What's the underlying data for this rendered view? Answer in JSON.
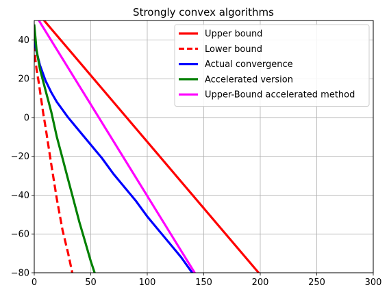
{
  "chart_data": {
    "type": "line",
    "title": "Strongly convex algorithms",
    "xlabel": "",
    "ylabel": "",
    "xlim": [
      0,
      300
    ],
    "ylim": [
      -80,
      50
    ],
    "xticks": [
      0,
      50,
      100,
      150,
      200,
      250,
      300
    ],
    "yticks": [
      -80,
      -60,
      -40,
      -20,
      0,
      20,
      40
    ],
    "grid": true,
    "legend_position": "top-right",
    "series": [
      {
        "name": "Upper bound",
        "color": "#ff0000",
        "style": "solid",
        "x": [
          0,
          200
        ],
        "y": [
          56,
          -81
        ]
      },
      {
        "name": "Lower bound",
        "color": "#ff0000",
        "style": "dashed",
        "x": [
          0,
          1,
          2,
          4,
          6,
          8,
          10,
          15,
          20,
          25,
          30,
          34
        ],
        "y": [
          38,
          30,
          25,
          18,
          10,
          2,
          -5,
          -24,
          -42,
          -58,
          -70,
          -81
        ]
      },
      {
        "name": "Actual convergence",
        "color": "#0000ff",
        "style": "solid",
        "x": [
          0,
          2,
          5,
          10,
          15,
          20,
          25,
          30,
          40,
          50,
          60,
          70,
          80,
          90,
          100,
          110,
          120,
          130,
          141
        ],
        "y": [
          40,
          34,
          27,
          19,
          13,
          8,
          4,
          0,
          -7,
          -14,
          -21,
          -29,
          -36,
          -43,
          -51,
          -58,
          -65,
          -72,
          -81
        ]
      },
      {
        "name": "Accelerated version",
        "color": "#008000",
        "style": "solid",
        "x": [
          0,
          2,
          5,
          10,
          15,
          20,
          25,
          30,
          35,
          40,
          45,
          50,
          54
        ],
        "y": [
          48,
          35,
          25,
          14,
          3,
          -10,
          -21,
          -32,
          -43,
          -54,
          -64,
          -74,
          -81
        ]
      },
      {
        "name": "Upper-Bound accelerated method",
        "color": "#ff00ff",
        "style": "solid",
        "x": [
          2,
          143
        ],
        "y": [
          52,
          -81
        ]
      }
    ]
  }
}
